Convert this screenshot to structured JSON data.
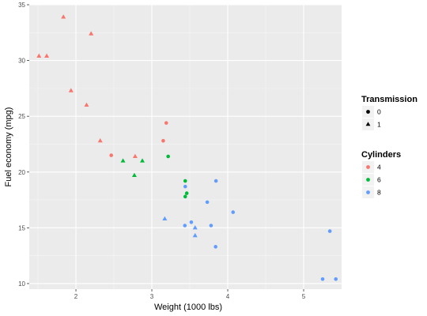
{
  "chart_data": {
    "type": "scatter",
    "xlabel": "Weight (1000 lbs)",
    "ylabel": "Fuel economy (mpg)",
    "xlim": [
      1.385,
      5.5
    ],
    "ylim": [
      9.5,
      35
    ],
    "x_ticks": [
      2,
      3,
      4,
      5
    ],
    "y_ticks": [
      10,
      15,
      20,
      25,
      30,
      35
    ],
    "grid": true,
    "legend_placement": "right",
    "legends": {
      "transmission": {
        "title": "Transmission",
        "entries": [
          {
            "label": "0",
            "shape": "circle"
          },
          {
            "label": "1",
            "shape": "triangle"
          }
        ]
      },
      "cylinders": {
        "title": "Cylinders",
        "entries": [
          {
            "label": "4",
            "color": "#F8766D"
          },
          {
            "label": "6",
            "color": "#00BA38"
          },
          {
            "label": "8",
            "color": "#619CFF"
          }
        ]
      }
    },
    "points": [
      {
        "x": 1.513,
        "y": 30.4,
        "cyl": "4",
        "am": "1"
      },
      {
        "x": 1.615,
        "y": 30.4,
        "cyl": "4",
        "am": "1"
      },
      {
        "x": 1.835,
        "y": 33.9,
        "cyl": "4",
        "am": "1"
      },
      {
        "x": 1.935,
        "y": 27.3,
        "cyl": "4",
        "am": "1"
      },
      {
        "x": 2.14,
        "y": 26.0,
        "cyl": "4",
        "am": "1"
      },
      {
        "x": 2.2,
        "y": 32.4,
        "cyl": "4",
        "am": "1"
      },
      {
        "x": 2.32,
        "y": 22.8,
        "cyl": "4",
        "am": "1"
      },
      {
        "x": 2.465,
        "y": 21.5,
        "cyl": "4",
        "am": "0"
      },
      {
        "x": 2.62,
        "y": 21.0,
        "cyl": "6",
        "am": "1"
      },
      {
        "x": 2.77,
        "y": 19.7,
        "cyl": "6",
        "am": "1"
      },
      {
        "x": 2.78,
        "y": 21.4,
        "cyl": "4",
        "am": "1"
      },
      {
        "x": 2.875,
        "y": 21.0,
        "cyl": "6",
        "am": "1"
      },
      {
        "x": 3.15,
        "y": 22.8,
        "cyl": "4",
        "am": "0"
      },
      {
        "x": 3.17,
        "y": 15.8,
        "cyl": "8",
        "am": "1"
      },
      {
        "x": 3.19,
        "y": 24.4,
        "cyl": "4",
        "am": "0"
      },
      {
        "x": 3.215,
        "y": 21.4,
        "cyl": "6",
        "am": "0"
      },
      {
        "x": 3.435,
        "y": 15.2,
        "cyl": "8",
        "am": "0"
      },
      {
        "x": 3.44,
        "y": 18.7,
        "cyl": "8",
        "am": "0"
      },
      {
        "x": 3.44,
        "y": 19.2,
        "cyl": "6",
        "am": "0"
      },
      {
        "x": 3.44,
        "y": 17.8,
        "cyl": "6",
        "am": "0"
      },
      {
        "x": 3.46,
        "y": 18.1,
        "cyl": "6",
        "am": "0"
      },
      {
        "x": 3.52,
        "y": 15.5,
        "cyl": "8",
        "am": "0"
      },
      {
        "x": 3.57,
        "y": 14.3,
        "cyl": "8",
        "am": "1"
      },
      {
        "x": 3.57,
        "y": 15.0,
        "cyl": "8",
        "am": "1"
      },
      {
        "x": 3.73,
        "y": 17.3,
        "cyl": "8",
        "am": "0"
      },
      {
        "x": 3.78,
        "y": 15.2,
        "cyl": "8",
        "am": "0"
      },
      {
        "x": 3.84,
        "y": 13.3,
        "cyl": "8",
        "am": "0"
      },
      {
        "x": 3.845,
        "y": 19.2,
        "cyl": "8",
        "am": "0"
      },
      {
        "x": 4.07,
        "y": 16.4,
        "cyl": "8",
        "am": "0"
      },
      {
        "x": 5.25,
        "y": 10.4,
        "cyl": "8",
        "am": "0"
      },
      {
        "x": 5.345,
        "y": 14.7,
        "cyl": "8",
        "am": "0"
      },
      {
        "x": 5.424,
        "y": 10.4,
        "cyl": "8",
        "am": "0"
      }
    ]
  }
}
